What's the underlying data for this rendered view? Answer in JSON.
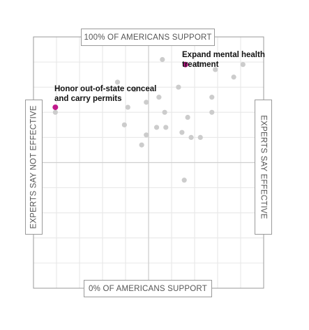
{
  "chart_data": {
    "type": "scatter",
    "axes": {
      "top": "100% OF AMERICANS SUPPORT",
      "bottom": "0% OF AMERICANS SUPPORT",
      "left": "EXPERTS SAY NOT EFFECTIVE",
      "right": "EXPERTS SAY EFFECTIVE"
    },
    "xlim": [
      -1,
      1
    ],
    "ylim": [
      0,
      100
    ],
    "grid": true,
    "colors": {
      "highlight": "#c0198b",
      "point": "#cccccc",
      "grid": "#e6e6e6",
      "axis": "#cfcfcf"
    },
    "points": [
      {
        "x": 0.12,
        "y": 91
      },
      {
        "x": 0.43,
        "y": 89
      },
      {
        "x": 0.58,
        "y": 87
      },
      {
        "x": 0.82,
        "y": 89
      },
      {
        "x": 0.74,
        "y": 84
      },
      {
        "x": -0.27,
        "y": 82
      },
      {
        "x": -0.12,
        "y": 79
      },
      {
        "x": 0.26,
        "y": 80
      },
      {
        "x": 0.55,
        "y": 76
      },
      {
        "x": 0.09,
        "y": 76
      },
      {
        "x": -0.02,
        "y": 74
      },
      {
        "x": -0.18,
        "y": 72
      },
      {
        "x": 0.14,
        "y": 70
      },
      {
        "x": 0.55,
        "y": 70
      },
      {
        "x": 0.34,
        "y": 68
      },
      {
        "x": -0.21,
        "y": 65
      },
      {
        "x": 0.07,
        "y": 64
      },
      {
        "x": 0.15,
        "y": 64
      },
      {
        "x": 0.29,
        "y": 62
      },
      {
        "x": -0.02,
        "y": 61
      },
      {
        "x": 0.37,
        "y": 60
      },
      {
        "x": 0.45,
        "y": 60
      },
      {
        "x": -0.06,
        "y": 57
      },
      {
        "x": -0.81,
        "y": 70
      },
      {
        "x": 0.31,
        "y": 43
      }
    ],
    "highlighted": [
      {
        "label": "Expand mental health treatment",
        "x": 0.32,
        "y": 89
      },
      {
        "label": "Honor out-of-state conceal and carry permits",
        "x": -0.81,
        "y": 72
      }
    ]
  }
}
